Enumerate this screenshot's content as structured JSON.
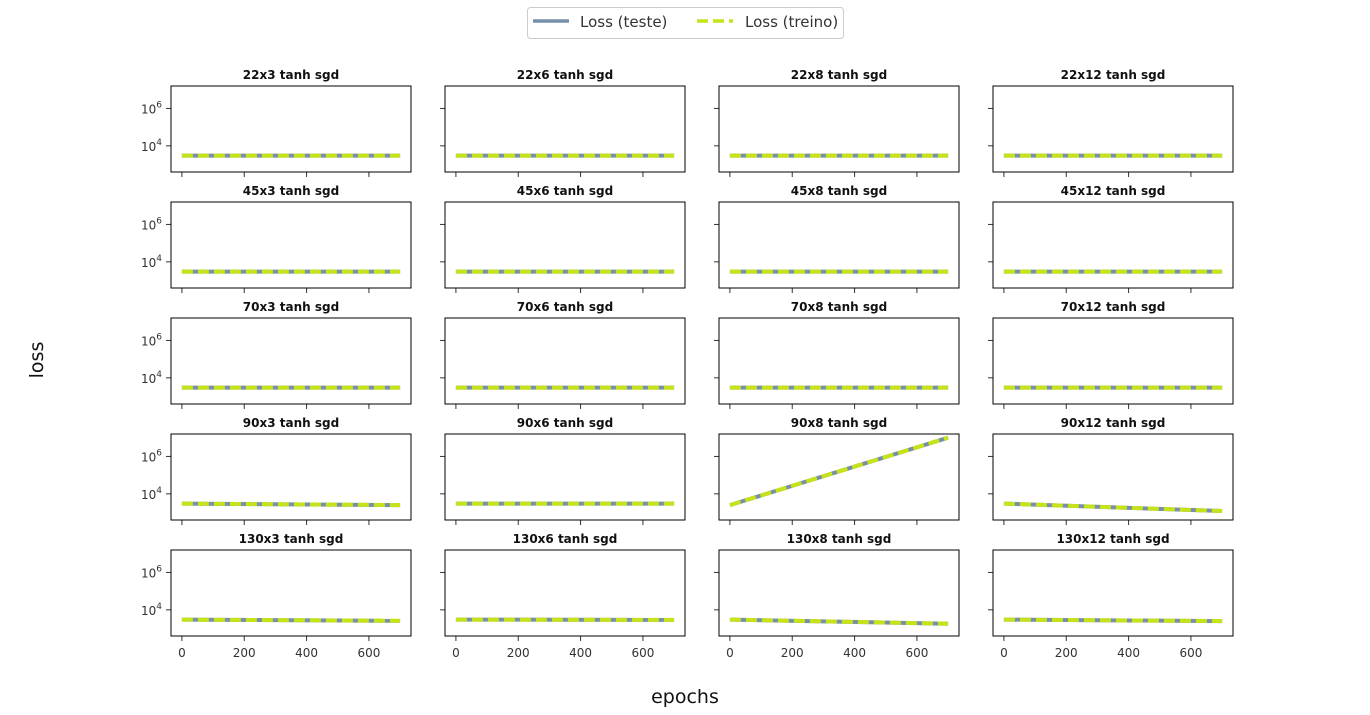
{
  "legend": {
    "items": [
      {
        "label": "Loss (teste)",
        "color": "#7590a8",
        "style": "solid"
      },
      {
        "label": "Loss (treino)",
        "color": "#c6e31a",
        "style": "dashed"
      }
    ]
  },
  "xlabel": "epochs",
  "ylabel": "loss",
  "chart_data": {
    "type": "line",
    "layout": "grid 5 rows x 4 columns, shared x and y axes",
    "xlim": [
      -35,
      735
    ],
    "ylim_log10": [
      2.6,
      7.2
    ],
    "yscale": "log",
    "xticks": [
      0,
      200,
      400,
      600
    ],
    "xtick_labels": [
      "0",
      "200",
      "400",
      "600"
    ],
    "yticks_log10": [
      4,
      6
    ],
    "grid": false,
    "legend_position": "top-center",
    "series_names": [
      "Loss (teste)",
      "Loss (treino)"
    ],
    "panels": [
      {
        "title": "22x3 tanh sgd",
        "x": [
          0,
          700
        ],
        "teste": [
          3000,
          3000
        ],
        "treino": [
          3000,
          3000
        ]
      },
      {
        "title": "22x6 tanh sgd",
        "x": [
          0,
          700
        ],
        "teste": [
          3000,
          3000
        ],
        "treino": [
          3000,
          3000
        ]
      },
      {
        "title": "22x8 tanh sgd",
        "x": [
          0,
          700
        ],
        "teste": [
          3000,
          3000
        ],
        "treino": [
          3000,
          3000
        ]
      },
      {
        "title": "22x12 tanh sgd",
        "x": [
          0,
          700
        ],
        "teste": [
          3000,
          3000
        ],
        "treino": [
          3000,
          3000
        ]
      },
      {
        "title": "45x3 tanh sgd",
        "x": [
          0,
          700
        ],
        "teste": [
          3000,
          3000
        ],
        "treino": [
          3000,
          3000
        ]
      },
      {
        "title": "45x6 tanh sgd",
        "x": [
          0,
          700
        ],
        "teste": [
          3000,
          3000
        ],
        "treino": [
          3000,
          3000
        ]
      },
      {
        "title": "45x8 tanh sgd",
        "x": [
          0,
          700
        ],
        "teste": [
          3000,
          3000
        ],
        "treino": [
          3000,
          3000
        ]
      },
      {
        "title": "45x12 tanh sgd",
        "x": [
          0,
          700
        ],
        "teste": [
          3000,
          3000
        ],
        "treino": [
          3000,
          3000
        ]
      },
      {
        "title": "70x3 tanh sgd",
        "x": [
          0,
          700
        ],
        "teste": [
          3000,
          3000
        ],
        "treino": [
          3000,
          3000
        ]
      },
      {
        "title": "70x6 tanh sgd",
        "x": [
          0,
          700
        ],
        "teste": [
          3000,
          3000
        ],
        "treino": [
          3000,
          3000
        ]
      },
      {
        "title": "70x8 tanh sgd",
        "x": [
          0,
          700
        ],
        "teste": [
          3000,
          3000
        ],
        "treino": [
          3000,
          3000
        ]
      },
      {
        "title": "70x12 tanh sgd",
        "x": [
          0,
          700
        ],
        "teste": [
          3000,
          3000
        ],
        "treino": [
          3000,
          3000
        ]
      },
      {
        "title": "90x3 tanh sgd",
        "x": [
          0,
          700
        ],
        "teste": [
          3000,
          2500
        ],
        "treino": [
          3000,
          2500
        ]
      },
      {
        "title": "90x6 tanh sgd",
        "x": [
          0,
          700
        ],
        "teste": [
          3000,
          3000
        ],
        "treino": [
          3000,
          3000
        ]
      },
      {
        "title": "90x8 tanh sgd",
        "x": [
          0,
          700
        ],
        "teste": [
          2500,
          10000000
        ],
        "treino": [
          2500,
          10000000
        ]
      },
      {
        "title": "90x12 tanh sgd",
        "x": [
          0,
          700
        ],
        "teste": [
          3000,
          1200
        ],
        "treino": [
          3000,
          1200
        ]
      },
      {
        "title": "130x3 tanh sgd",
        "x": [
          0,
          700
        ],
        "teste": [
          3000,
          2600
        ],
        "treino": [
          3000,
          2600
        ]
      },
      {
        "title": "130x6 tanh sgd",
        "x": [
          0,
          700
        ],
        "teste": [
          3000,
          2900
        ],
        "treino": [
          3000,
          2900
        ]
      },
      {
        "title": "130x8 tanh sgd",
        "x": [
          0,
          700
        ],
        "teste": [
          3000,
          1800
        ],
        "treino": [
          3000,
          1800
        ]
      },
      {
        "title": "130x12 tanh sgd",
        "x": [
          0,
          700
        ],
        "teste": [
          3000,
          2500
        ],
        "treino": [
          3000,
          2500
        ]
      }
    ]
  }
}
